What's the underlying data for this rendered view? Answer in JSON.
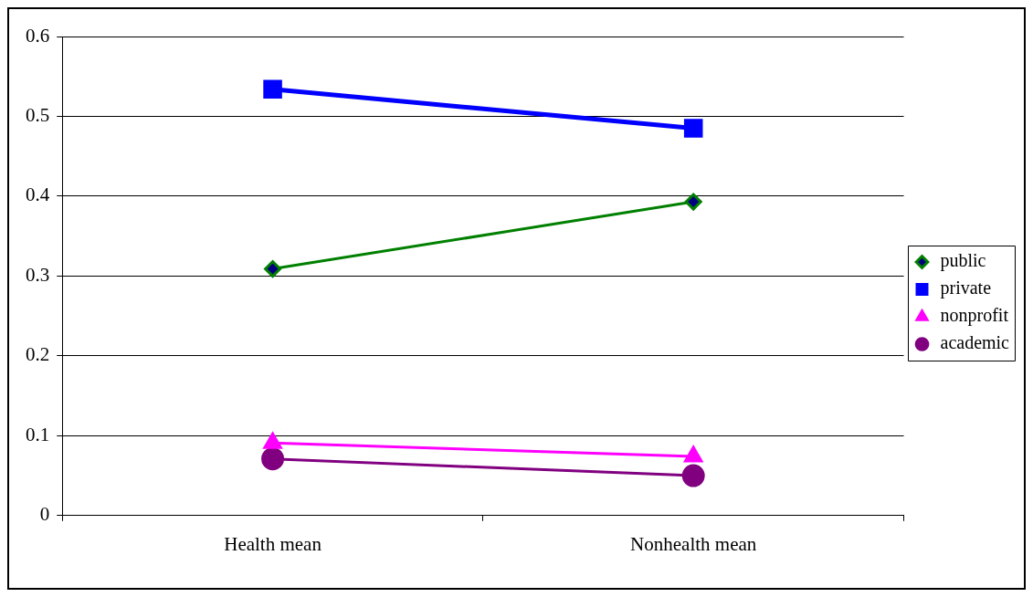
{
  "chart_data": {
    "type": "line",
    "categories": [
      "Health mean",
      "Nonhealth mean"
    ],
    "series": [
      {
        "name": "public",
        "color": "#008000",
        "marker": "diamond",
        "values": [
          0.309,
          0.393
        ]
      },
      {
        "name": "private",
        "color": "#0000ff",
        "marker": "square",
        "values": [
          0.534,
          0.485
        ]
      },
      {
        "name": "nonprofit",
        "color": "#ff00ff",
        "marker": "triangle",
        "values": [
          0.091,
          0.074
        ]
      },
      {
        "name": "academic",
        "color": "#800080",
        "marker": "circle",
        "values": [
          0.071,
          0.05
        ]
      }
    ],
    "ylim": [
      0,
      0.6
    ],
    "yticks": [
      0,
      0.1,
      0.2,
      0.3,
      0.4,
      0.5,
      0.6
    ],
    "grid": "y",
    "legend": "right",
    "line_style": "solid"
  }
}
